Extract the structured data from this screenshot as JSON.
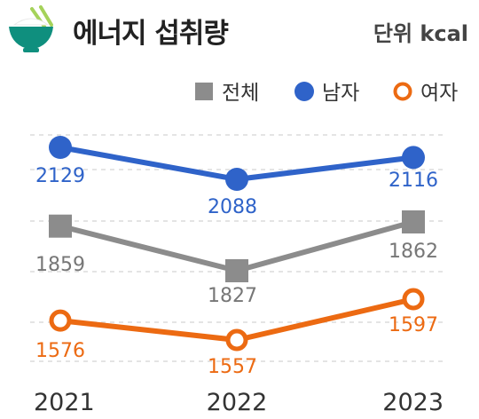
{
  "header": {
    "title": "에너지 섭취량",
    "unit": "단위 kcal",
    "icon": "rice-bowl-icon"
  },
  "chart_data": {
    "type": "line",
    "categories": [
      "2021",
      "2022",
      "2023"
    ],
    "series": [
      {
        "name": "전체",
        "values": [
          1859,
          1827,
          1862
        ],
        "color": "#8c8c8c",
        "marker": "square"
      },
      {
        "name": "남자",
        "values": [
          2129,
          2088,
          2116
        ],
        "color": "#2f63c9",
        "marker": "circle"
      },
      {
        "name": "여자",
        "values": [
          1576,
          1557,
          1597
        ],
        "color": "#ec6a12",
        "marker": "hollow-circle"
      }
    ],
    "legend_placement": "top-right",
    "grid": true
  }
}
